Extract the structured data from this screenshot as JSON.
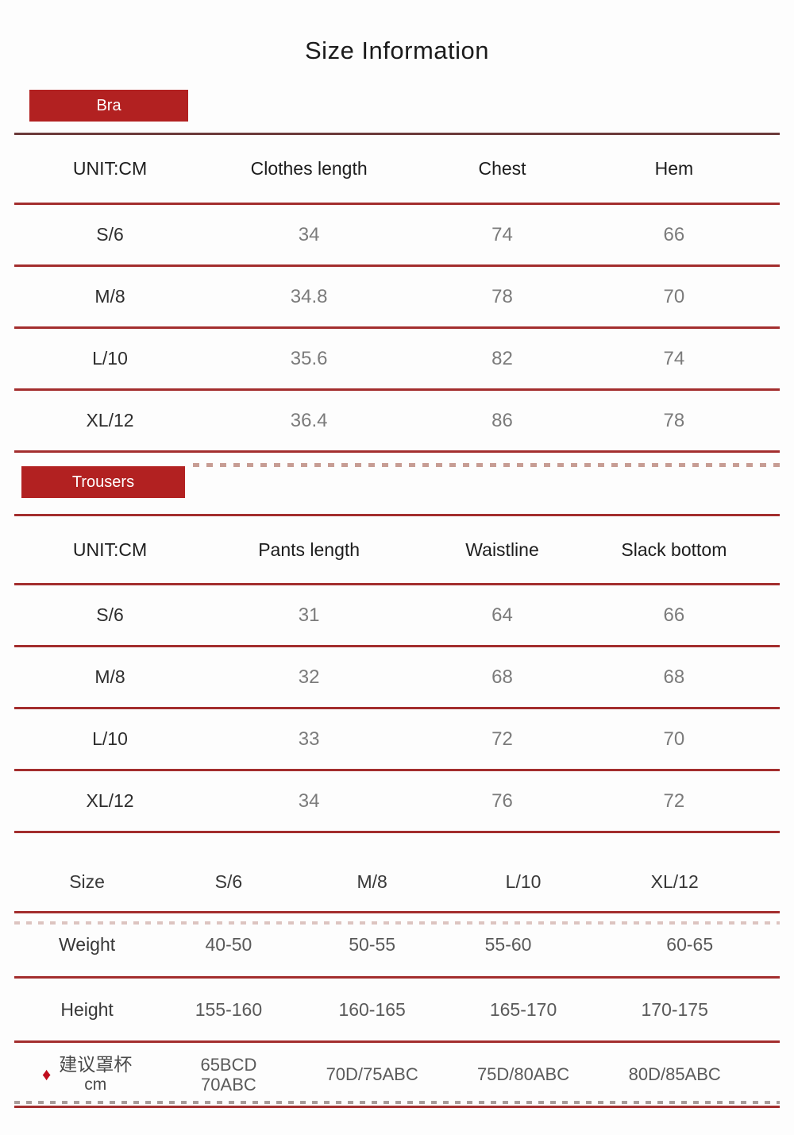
{
  "page": {
    "title": "Size Information"
  },
  "icons": {
    "diamond": "♦"
  },
  "colors": {
    "badge_red": "#b22121",
    "rule_red": "#a32e2e",
    "dark_maroon_rule": "#6b3a3a",
    "dash_muted_red": "#c79d94",
    "dash_light_pink": "#ddc4c0",
    "value_gray": "#7b7b7b",
    "badge_text": "#ffffff"
  },
  "bra": {
    "badge_label": "Bra",
    "headers": [
      "UNIT:CM",
      "Clothes length",
      "Chest",
      "Hem"
    ],
    "rows": [
      {
        "size": "S/6",
        "values": [
          "34",
          "74",
          "66"
        ]
      },
      {
        "size": "M/8",
        "values": [
          "34.8",
          "78",
          "70"
        ]
      },
      {
        "size": "L/10",
        "values": [
          "35.6",
          "82",
          "74"
        ]
      },
      {
        "size": "XL/12",
        "values": [
          "36.4",
          "86",
          "78"
        ]
      }
    ]
  },
  "trousers": {
    "badge_label": "Trousers",
    "headers": [
      "UNIT:CM",
      "Pants length",
      "Waistline",
      "Slack bottom"
    ],
    "rows": [
      {
        "size": "S/6",
        "values": [
          "31",
          "64",
          "66"
        ]
      },
      {
        "size": "M/8",
        "values": [
          "32",
          "68",
          "68"
        ]
      },
      {
        "size": "L/10",
        "values": [
          "33",
          "72",
          "70"
        ]
      },
      {
        "size": "XL/12",
        "values": [
          "34",
          "76",
          "72"
        ]
      }
    ]
  },
  "body_table": {
    "headers": [
      "Size",
      "S/6",
      "M/8",
      "L/10",
      "XL/12"
    ],
    "weight_row": {
      "label": "Weight",
      "values": [
        "40-50",
        "50-55",
        "55-60",
        "60-65"
      ]
    },
    "height_row": {
      "label": "Height",
      "values": [
        "155-160",
        "160-165",
        "165-170",
        "170-175"
      ]
    },
    "cup_row": {
      "label": "建议罩杯",
      "unit": "cm",
      "s_line1": "65BCD",
      "s_line2": "70ABC",
      "m": "70D/75ABC",
      "l": "75D/80ABC",
      "xl": "80D/85ABC"
    }
  },
  "chart_data": [
    {
      "type": "table",
      "title": "Bra",
      "unit": "CM",
      "columns": [
        "UNIT:CM",
        "Clothes length",
        "Chest",
        "Hem"
      ],
      "rows": [
        [
          "S/6",
          34,
          74,
          66
        ],
        [
          "M/8",
          34.8,
          78,
          70
        ],
        [
          "L/10",
          35.6,
          82,
          74
        ],
        [
          "XL/12",
          36.4,
          86,
          78
        ]
      ]
    },
    {
      "type": "table",
      "title": "Trousers",
      "unit": "CM",
      "columns": [
        "UNIT:CM",
        "Pants length",
        "Waistline",
        "Slack bottom"
      ],
      "rows": [
        [
          "S/6",
          31,
          64,
          66
        ],
        [
          "M/8",
          32,
          68,
          68
        ],
        [
          "L/10",
          33,
          72,
          70
        ],
        [
          "XL/12",
          34,
          76,
          72
        ]
      ]
    },
    {
      "type": "table",
      "title": "Body reference",
      "columns": [
        "Size",
        "S/6",
        "M/8",
        "L/10",
        "XL/12"
      ],
      "rows": [
        [
          "Weight",
          "40-50",
          "50-55",
          "55-60",
          "60-65"
        ],
        [
          "Height",
          "155-160",
          "160-165",
          "165-170",
          "170-175"
        ],
        [
          "建议罩杯 cm",
          "65BCD 70ABC",
          "70D/75ABC",
          "75D/80ABC",
          "80D/85ABC"
        ]
      ]
    }
  ]
}
